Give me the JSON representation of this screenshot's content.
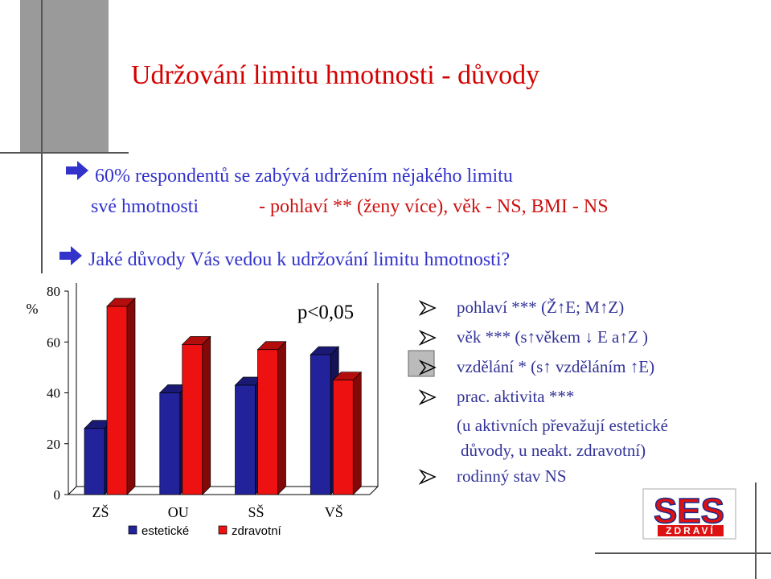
{
  "title": "Udržování limitu hmotnosti - důvody",
  "intro": {
    "line1": "60% respondentů se zabývá udržením nějakého limitu",
    "line2a": "své hmotnosti",
    "line2b": "- pohlaví ** (ženy více), věk - NS, BMI - NS"
  },
  "question": "Jaké důvody Vás vedou k udržování limitu hmotnosti?",
  "findings": [
    "pohlaví *** (Ž↑E; M↑Z)",
    "věk *** (s↑věkem ↓ E a↑Z )",
    "vzdělání * (s↑ vzděláním ↑E)",
    "prac. aktivita ***",
    "(u aktivních převažují estetické",
    "důvody, u neakt. zdravotní)",
    "rodinný stav NS"
  ],
  "logo": {
    "name": "SES",
    "sub": "ZDRAVÍ"
  },
  "chart_data": {
    "type": "bar",
    "y_label": "%",
    "annotation": "p<0,05",
    "categories": [
      "ZŠ",
      "OU",
      "SŠ",
      "VŠ"
    ],
    "series": [
      {
        "name": "estetické",
        "color": "#22229a",
        "values": [
          26,
          40,
          43,
          55
        ]
      },
      {
        "name": "zdravotní",
        "color": "#ee1111",
        "values": [
          74,
          59,
          57,
          45
        ]
      }
    ],
    "ylim": [
      0,
      80
    ],
    "yticks": [
      0,
      20,
      40,
      60,
      80
    ]
  }
}
